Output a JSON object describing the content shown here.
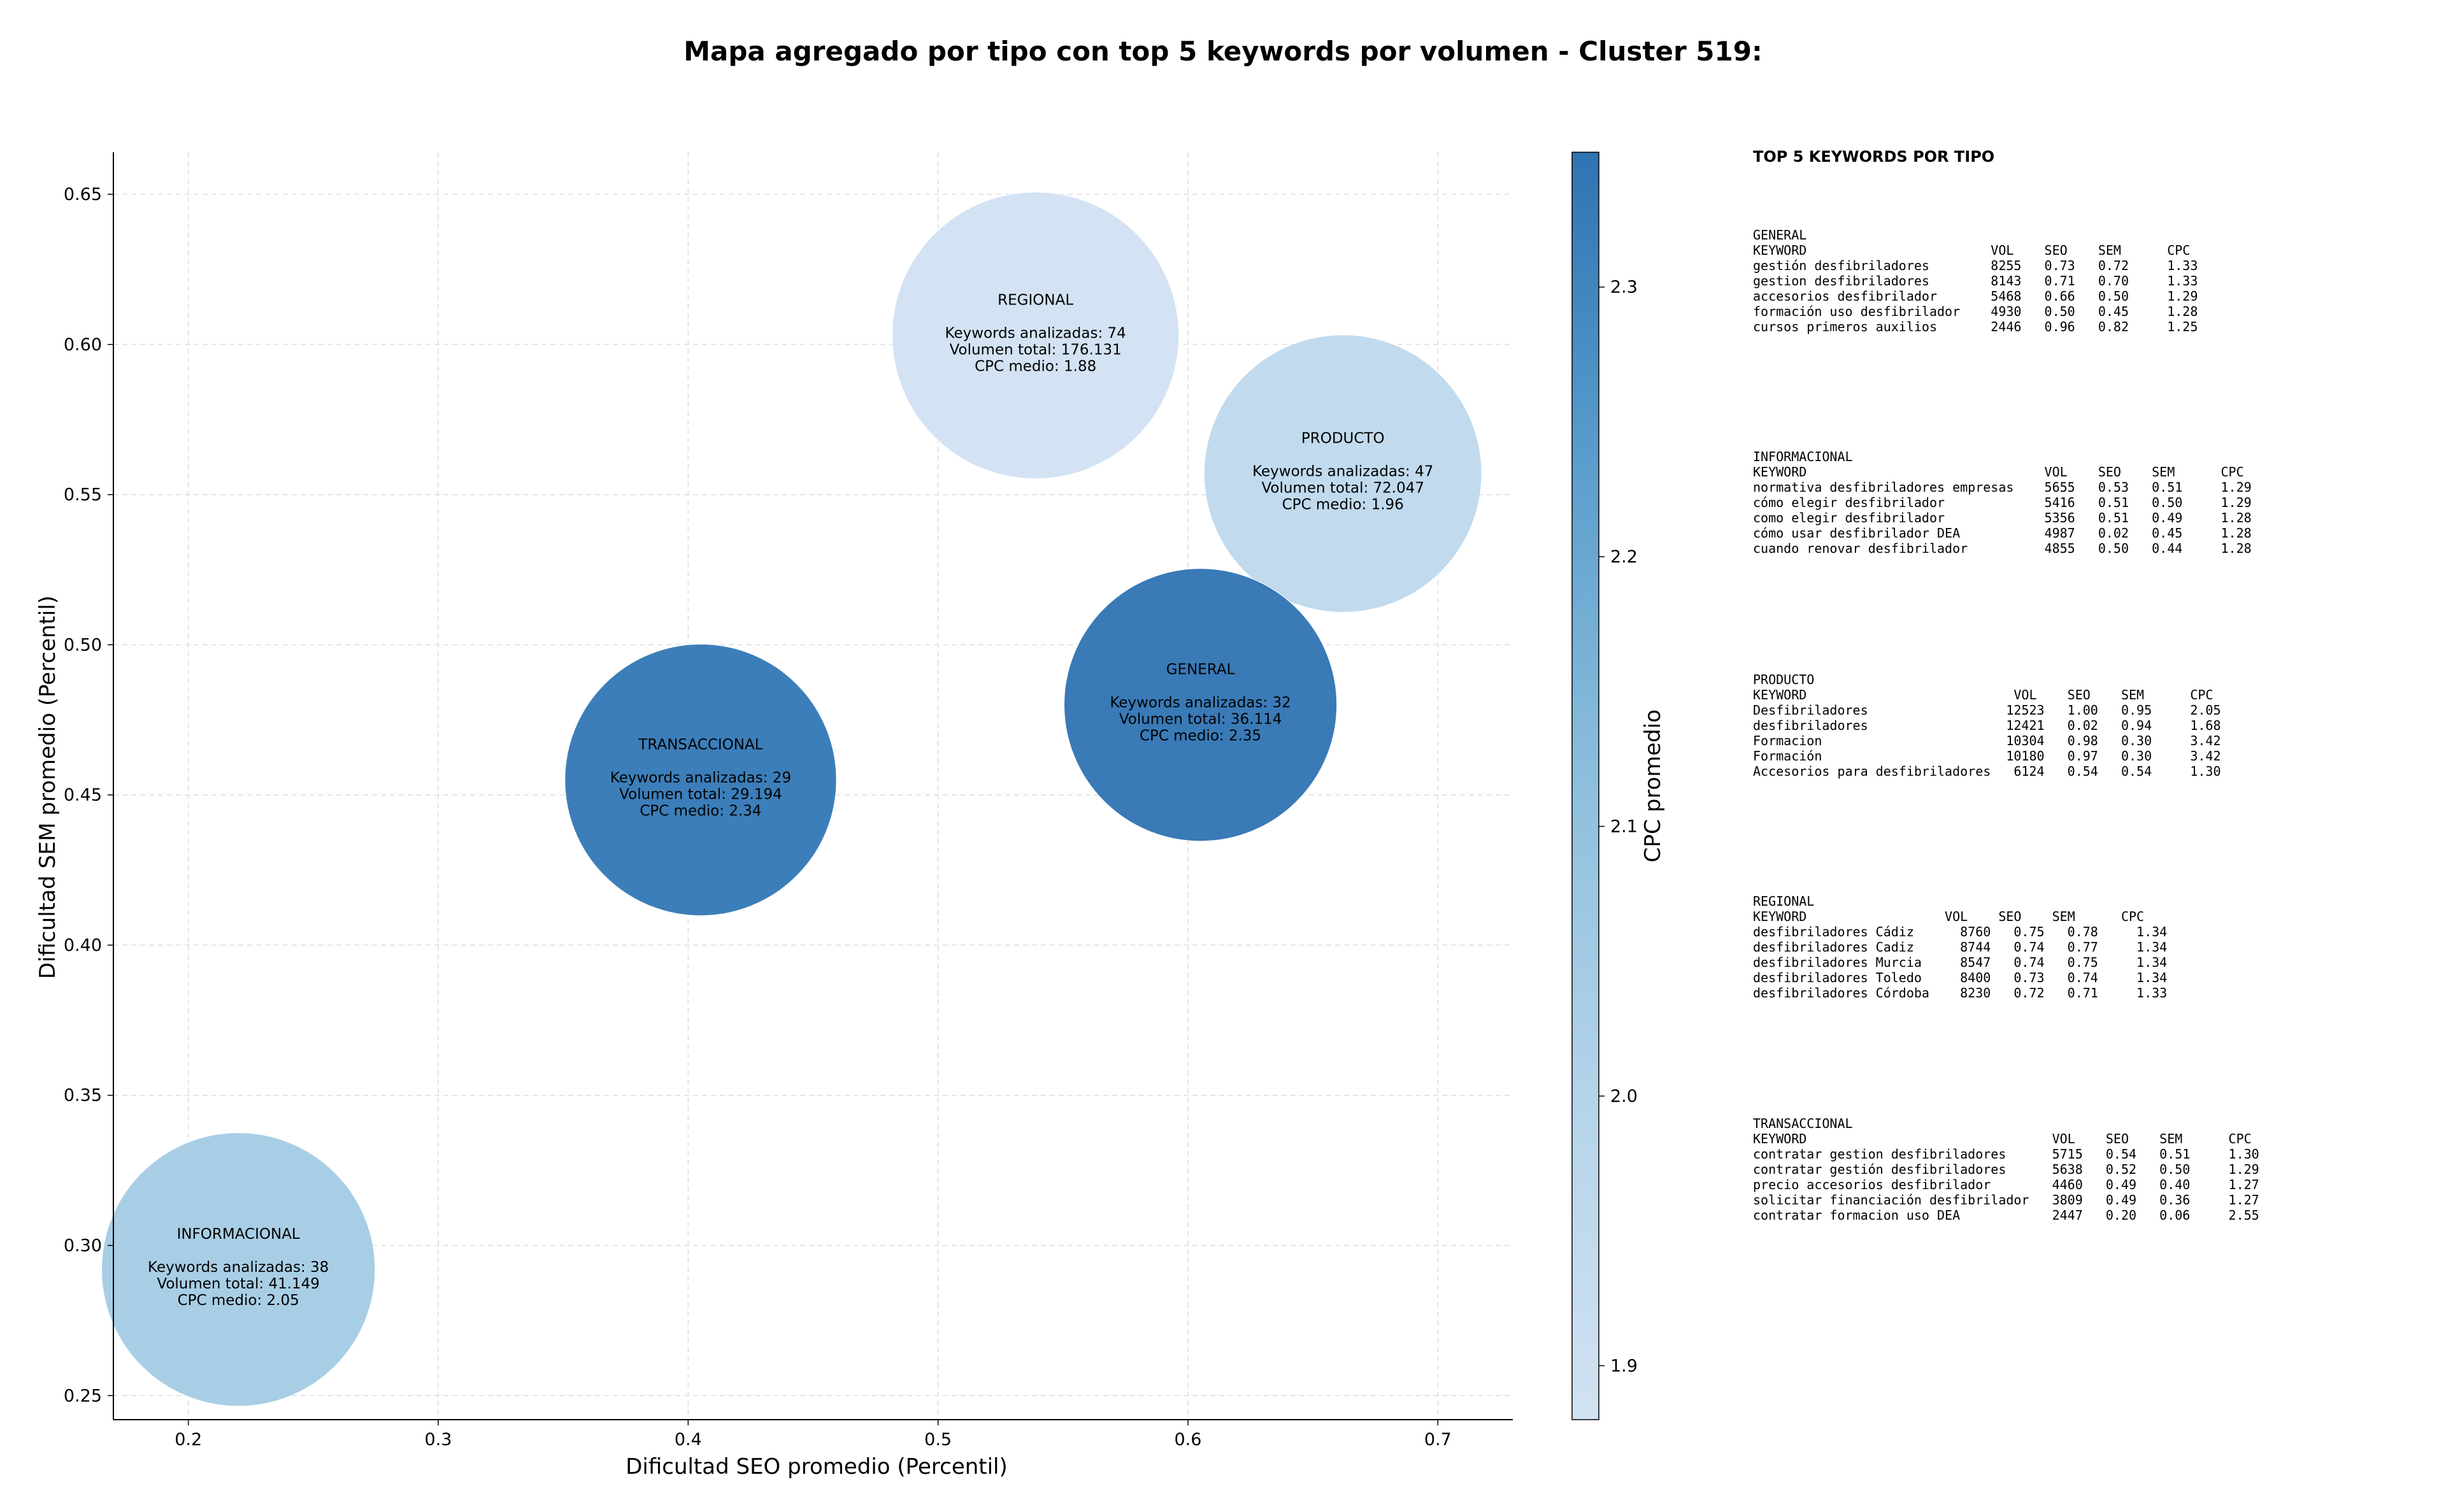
{
  "chart_data": {
    "type": "scatter",
    "title": "Mapa agregado por tipo con top 5 keywords por volumen - Cluster 519:",
    "xlabel": "Dificultad SEO promedio (Percentil)",
    "ylabel": "Dificultad SEM promedio (Percentil)",
    "xlim": [
      0.17,
      0.73
    ],
    "ylim": [
      0.242,
      0.664
    ],
    "xticks": [
      "0.2",
      "0.3",
      "0.4",
      "0.5",
      "0.6",
      "0.7"
    ],
    "yticks": [
      "0.25",
      "0.30",
      "0.35",
      "0.40",
      "0.45",
      "0.50",
      "0.55",
      "0.60",
      "0.65"
    ],
    "grid": true,
    "colorbar": {
      "label": "CPC promedio",
      "range": [
        1.88,
        2.35
      ],
      "ticks": [
        "1.9",
        "2.0",
        "2.1",
        "2.2",
        "2.3"
      ],
      "colormap": "Blues"
    },
    "points": [
      {
        "label": "REGIONAL",
        "x": 0.539,
        "y": 0.603,
        "keywords": 74,
        "volume": 176131,
        "cpc": 1.88,
        "text_count": "Keywords analizadas: 74",
        "text_volume": "Volumen total: 176.131",
        "text_cpc": "CPC medio: 1.88"
      },
      {
        "label": "PRODUCTO",
        "x": 0.662,
        "y": 0.557,
        "keywords": 47,
        "volume": 72047,
        "cpc": 1.96,
        "text_count": "Keywords analizadas: 47",
        "text_volume": "Volumen total: 72.047",
        "text_cpc": "CPC medio: 1.96"
      },
      {
        "label": "GENERAL",
        "x": 0.605,
        "y": 0.48,
        "keywords": 32,
        "volume": 36114,
        "cpc": 2.35,
        "text_count": "Keywords analizadas: 32",
        "text_volume": "Volumen total: 36.114",
        "text_cpc": "CPC medio: 2.35"
      },
      {
        "label": "TRANSACCIONAL",
        "x": 0.405,
        "y": 0.455,
        "keywords": 29,
        "volume": 29194,
        "cpc": 2.34,
        "text_count": "Keywords analizadas: 29",
        "text_volume": "Volumen total: 29.194",
        "text_cpc": "CPC medio: 2.34"
      },
      {
        "label": "INFORMACIONAL",
        "x": 0.22,
        "y": 0.292,
        "keywords": 38,
        "volume": 41149,
        "cpc": 2.05,
        "text_count": "Keywords analizadas: 38",
        "text_volume": "Volumen total: 41.149",
        "text_cpc": "CPC medio: 2.05"
      }
    ]
  },
  "keywords_panel": {
    "title": "TOP 5 KEYWORDS POR TIPO",
    "groups": [
      {
        "name": "GENERAL",
        "header": "KEYWORD                        VOL    SEO    SEM      CPC",
        "rows": [
          "gestión desfibriladores        8255   0.73   0.72     1.33",
          "gestion desfibriladores        8143   0.71   0.70     1.33",
          "accesorios desfibrilador       5468   0.66   0.50     1.29",
          "formación uso desfibrilador    4930   0.50   0.45     1.28",
          "cursos primeros auxilios       2446   0.96   0.82     1.25"
        ]
      },
      {
        "name": "INFORMACIONAL",
        "header": "KEYWORD                               VOL    SEO    SEM      CPC",
        "rows": [
          "normativa desfibriladores empresas    5655   0.53   0.51     1.29",
          "cómo elegir desfibrilador             5416   0.51   0.50     1.29",
          "como elegir desfibrilador             5356   0.51   0.49     1.28",
          "cómo usar desfibrilador DEA           4987   0.02   0.45     1.28",
          "cuando renovar desfibrilador          4855   0.50   0.44     1.28"
        ]
      },
      {
        "name": "PRODUCTO",
        "header": "KEYWORD                           VOL    SEO    SEM      CPC",
        "rows": [
          "Desfibriladores                  12523   1.00   0.95     2.05",
          "desfibriladores                  12421   0.02   0.94     1.68",
          "Formacion                        10304   0.98   0.30     3.42",
          "Formación                        10180   0.97   0.30     3.42",
          "Accesorios para desfibriladores   6124   0.54   0.54     1.30"
        ]
      },
      {
        "name": "REGIONAL",
        "header": "KEYWORD                  VOL    SEO    SEM      CPC",
        "rows": [
          "desfibriladores Cádiz      8760   0.75   0.78     1.34",
          "desfibriladores Cadiz      8744   0.74   0.77     1.34",
          "desfibriladores Murcia     8547   0.74   0.75     1.34",
          "desfibriladores Toledo     8400   0.73   0.74     1.34",
          "desfibriladores Córdoba    8230   0.72   0.71     1.33"
        ]
      },
      {
        "name": "TRANSACCIONAL",
        "header": "KEYWORD                                VOL    SEO    SEM      CPC",
        "rows": [
          "contratar gestion desfibriladores      5715   0.54   0.51     1.30",
          "contratar gestión desfibriladores      5638   0.52   0.50     1.29",
          "precio accesorios desfibrilador        4460   0.49   0.40     1.27",
          "solicitar financiación desfibrilador   3809   0.49   0.36     1.27",
          "contratar formacion uso DEA            2447   0.20   0.06     2.55"
        ]
      }
    ]
  }
}
